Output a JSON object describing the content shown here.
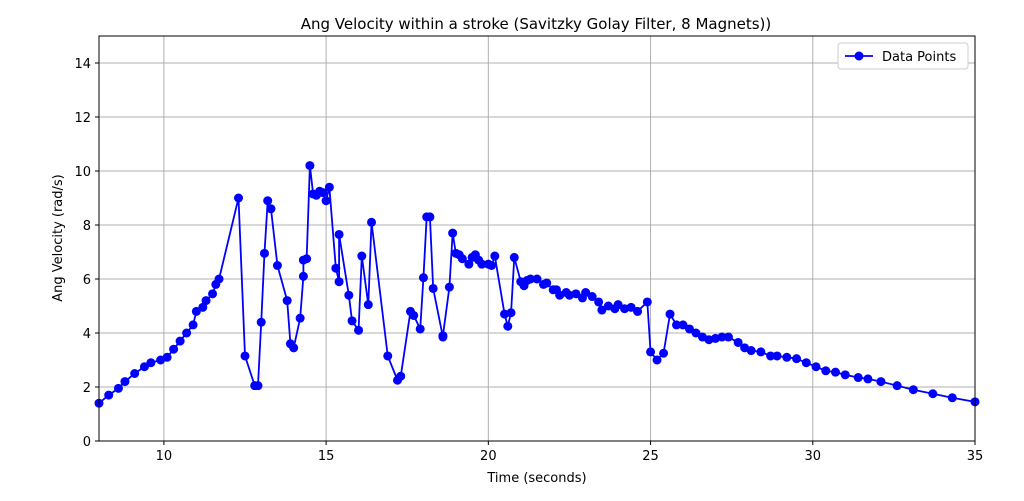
{
  "chart_data": {
    "type": "line",
    "title": "Ang Velocity within a stroke (Savitzky Golay Filter, 8 Magnets))",
    "xlabel": "Time (seconds)",
    "ylabel": "Ang Velocity (rad/s)",
    "xlim": [
      8,
      35
    ],
    "ylim": [
      0,
      15
    ],
    "xticks": [
      10,
      15,
      20,
      25,
      30,
      35
    ],
    "yticks": [
      0,
      2,
      4,
      6,
      8,
      10,
      12,
      14
    ],
    "grid": true,
    "legend_position": "top-right",
    "series": [
      {
        "name": "Data Points",
        "color": "#0000ff",
        "marker": "circle",
        "x": [
          8.0,
          8.3,
          8.6,
          8.8,
          9.1,
          9.4,
          9.6,
          9.9,
          10.1,
          10.3,
          10.5,
          10.7,
          10.9,
          11.0,
          11.2,
          11.3,
          11.5,
          11.6,
          11.7,
          12.3,
          12.5,
          12.8,
          12.9,
          13.0,
          13.1,
          13.2,
          13.3,
          13.5,
          13.8,
          13.9,
          14.0,
          14.2,
          14.3,
          14.3,
          14.4,
          14.5,
          14.6,
          14.7,
          14.8,
          14.9,
          15.0,
          15.1,
          15.3,
          15.4,
          15.4,
          15.7,
          15.8,
          16.0,
          16.1,
          16.3,
          16.4,
          16.9,
          17.2,
          17.3,
          17.6,
          17.7,
          17.9,
          18.0,
          18.1,
          18.2,
          18.3,
          18.6,
          18.6,
          18.8,
          18.9,
          19.0,
          19.1,
          19.2,
          19.4,
          19.5,
          19.6,
          19.7,
          19.8,
          20.0,
          20.1,
          20.2,
          20.5,
          20.6,
          20.7,
          20.8,
          21.0,
          21.1,
          21.2,
          21.3,
          21.5,
          21.7,
          21.8,
          22.0,
          22.1,
          22.2,
          22.4,
          22.5,
          22.7,
          22.9,
          23.0,
          23.2,
          23.4,
          23.5,
          23.7,
          23.9,
          24.0,
          24.2,
          24.4,
          24.6,
          24.9,
          25.0,
          25.2,
          25.4,
          25.6,
          25.8,
          26.0,
          26.2,
          26.4,
          26.6,
          26.8,
          27.0,
          27.2,
          27.4,
          27.7,
          27.9,
          28.1,
          28.4,
          28.7,
          28.9,
          29.2,
          29.5,
          29.8,
          30.1,
          30.4,
          30.7,
          31.0,
          31.4,
          31.7,
          32.1,
          32.6,
          33.1,
          33.7,
          34.3,
          35.0
        ],
        "y": [
          1.4,
          1.7,
          1.95,
          2.2,
          2.5,
          2.75,
          2.9,
          3.0,
          3.1,
          3.4,
          3.7,
          4.0,
          4.3,
          4.8,
          4.95,
          5.2,
          5.45,
          5.8,
          6.0,
          9.0,
          3.15,
          2.05,
          2.05,
          4.4,
          6.95,
          8.9,
          8.6,
          6.5,
          5.2,
          3.6,
          3.45,
          4.55,
          6.1,
          6.7,
          6.75,
          10.2,
          9.15,
          9.1,
          9.25,
          9.2,
          8.9,
          9.4,
          6.4,
          5.9,
          7.65,
          5.4,
          4.45,
          4.1,
          6.85,
          5.05,
          8.1,
          3.15,
          2.25,
          2.4,
          4.8,
          4.65,
          4.15,
          6.05,
          8.3,
          8.3,
          5.65,
          3.85,
          3.9,
          5.7,
          7.7,
          6.95,
          6.9,
          6.75,
          6.55,
          6.8,
          6.9,
          6.7,
          6.55,
          6.55,
          6.5,
          6.85,
          4.7,
          4.25,
          4.75,
          6.8,
          5.9,
          5.75,
          5.95,
          6.0,
          6.0,
          5.8,
          5.85,
          5.6,
          5.6,
          5.4,
          5.5,
          5.4,
          5.45,
          5.3,
          5.5,
          5.35,
          5.15,
          4.85,
          5.0,
          4.9,
          5.05,
          4.9,
          4.95,
          4.8,
          5.15,
          3.3,
          3.0,
          3.25,
          4.7,
          4.3,
          4.3,
          4.15,
          4.0,
          3.85,
          3.75,
          3.8,
          3.85,
          3.85,
          3.65,
          3.45,
          3.35,
          3.3,
          3.15,
          3.15,
          3.1,
          3.05,
          2.9,
          2.75,
          2.6,
          2.55,
          2.45,
          2.35,
          2.3,
          2.2,
          2.05,
          1.9,
          1.75,
          1.6,
          1.45
        ]
      }
    ]
  }
}
